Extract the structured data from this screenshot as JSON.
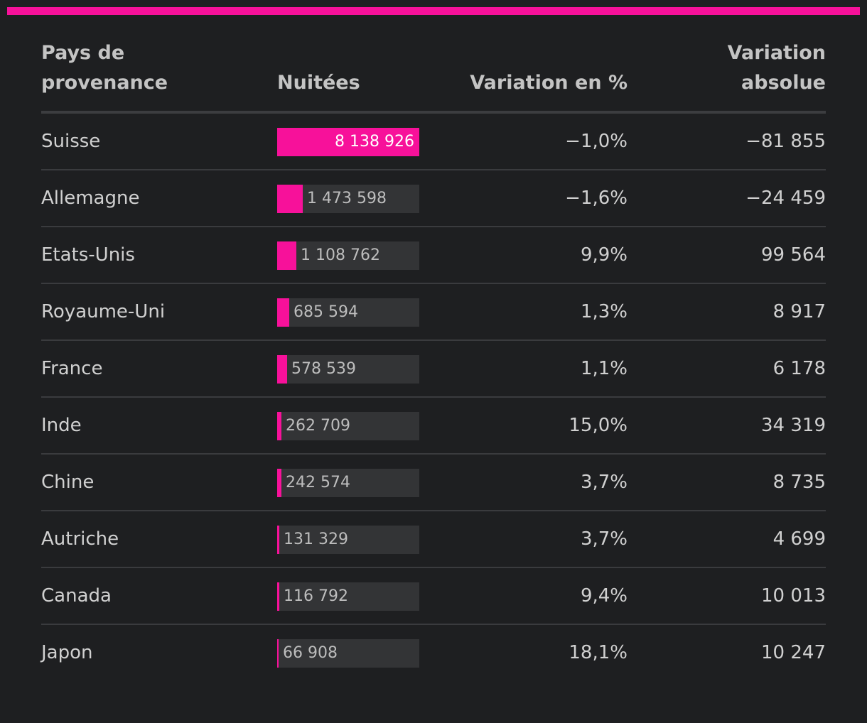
{
  "header": {
    "country": "Pays de provenance",
    "nuitees": "Nuitées",
    "variation_pct": "Variation en %",
    "variation_abs": "Variation absolue"
  },
  "colors": {
    "accent": "#f7119a",
    "background": "#1e1f21",
    "track": "#333436"
  },
  "chart_data": {
    "type": "table",
    "columns": [
      "Pays de provenance",
      "Nuitées",
      "Variation en %",
      "Variation absolue"
    ],
    "max_value": 8138926,
    "rows": [
      {
        "country": "Suisse",
        "value": 8138926,
        "value_label": "8 138 926",
        "var_pct": "−1,0%",
        "var_abs": "−81 855"
      },
      {
        "country": "Allemagne",
        "value": 1473598,
        "value_label": "1 473 598",
        "var_pct": "−1,6%",
        "var_abs": "−24 459"
      },
      {
        "country": "Etats-Unis",
        "value": 1108762,
        "value_label": "1 108 762",
        "var_pct": "9,9%",
        "var_abs": "99 564"
      },
      {
        "country": "Royaume-Uni",
        "value": 685594,
        "value_label": "685 594",
        "var_pct": "1,3%",
        "var_abs": "8 917"
      },
      {
        "country": "France",
        "value": 578539,
        "value_label": "578 539",
        "var_pct": "1,1%",
        "var_abs": "6 178"
      },
      {
        "country": "Inde",
        "value": 262709,
        "value_label": "262 709",
        "var_pct": "15,0%",
        "var_abs": "34 319"
      },
      {
        "country": "Chine",
        "value": 242574,
        "value_label": "242 574",
        "var_pct": "3,7%",
        "var_abs": "8 735"
      },
      {
        "country": "Autriche",
        "value": 131329,
        "value_label": "131 329",
        "var_pct": "3,7%",
        "var_abs": "4 699"
      },
      {
        "country": "Canada",
        "value": 116792,
        "value_label": "116 792",
        "var_pct": "9,4%",
        "var_abs": "10 013"
      },
      {
        "country": "Japon",
        "value": 66908,
        "value_label": "66 908",
        "var_pct": "18,1%",
        "var_abs": "10 247"
      }
    ]
  }
}
